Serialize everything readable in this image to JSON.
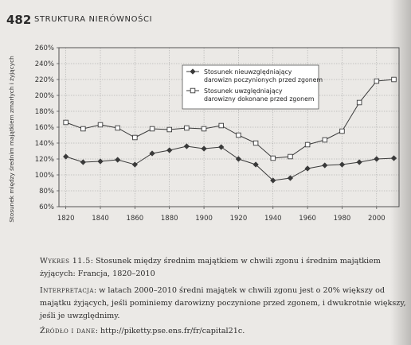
{
  "page": {
    "number": "482",
    "running_title": "STRUKTURA NIERÓWNOŚCI"
  },
  "chart_data": {
    "type": "line",
    "ylabel": "Stosunek między średnim majątkiem zmarłych i żyjących",
    "xlabel": "",
    "x": [
      1820,
      1830,
      1840,
      1850,
      1860,
      1870,
      1880,
      1890,
      1900,
      1910,
      1920,
      1930,
      1940,
      1950,
      1960,
      1970,
      1980,
      1990,
      2000,
      2010
    ],
    "x_ticks": [
      "1820",
      "1840",
      "1860",
      "1880",
      "1900",
      "1920",
      "1940",
      "1960",
      "1980",
      "2000"
    ],
    "y_ticks": [
      "60%",
      "80%",
      "100%",
      "120%",
      "140%",
      "160%",
      "180%",
      "200%",
      "220%",
      "240%",
      "260%"
    ],
    "ylim": [
      60,
      260
    ],
    "grid": true,
    "legend_position": "top-right",
    "series": [
      {
        "name": "Stosunek nieuwzględniający darowizn poczynionych przed zgonem",
        "marker": "filled-diamond",
        "values": [
          123,
          116,
          117,
          119,
          113,
          127,
          131,
          136,
          133,
          135,
          120,
          113,
          93,
          96,
          108,
          112,
          113,
          116,
          120,
          121
        ]
      },
      {
        "name": "Stosunek uwzględniający darowizny dokonane przed zgonem",
        "marker": "open-square",
        "values": [
          166,
          158,
          163,
          159,
          147,
          158,
          157,
          159,
          158,
          162,
          150,
          140,
          121,
          123,
          138,
          144,
          155,
          191,
          218,
          220
        ]
      }
    ]
  },
  "caption": {
    "figure_label": "Wykres 11.5",
    "figure_text": ": Stosunek między średnim majątkiem w chwili zgonu i średnim majątkiem żyjących: Francja, 1820–2010",
    "interpretation_label": "Interpretacja",
    "interpretation_text": ": w latach 2000–2010 średni majątek w chwili zgonu jest o 20% większy od majątku żyjących, jeśli pominiemy darowizny poczynione przed zgonem, i dwukrotnie większy, jeśli je uwzględnimy.",
    "source_label": "Źródło i dane",
    "source_text": ": http://piketty.pse.ens.fr/fr/capital21c."
  }
}
